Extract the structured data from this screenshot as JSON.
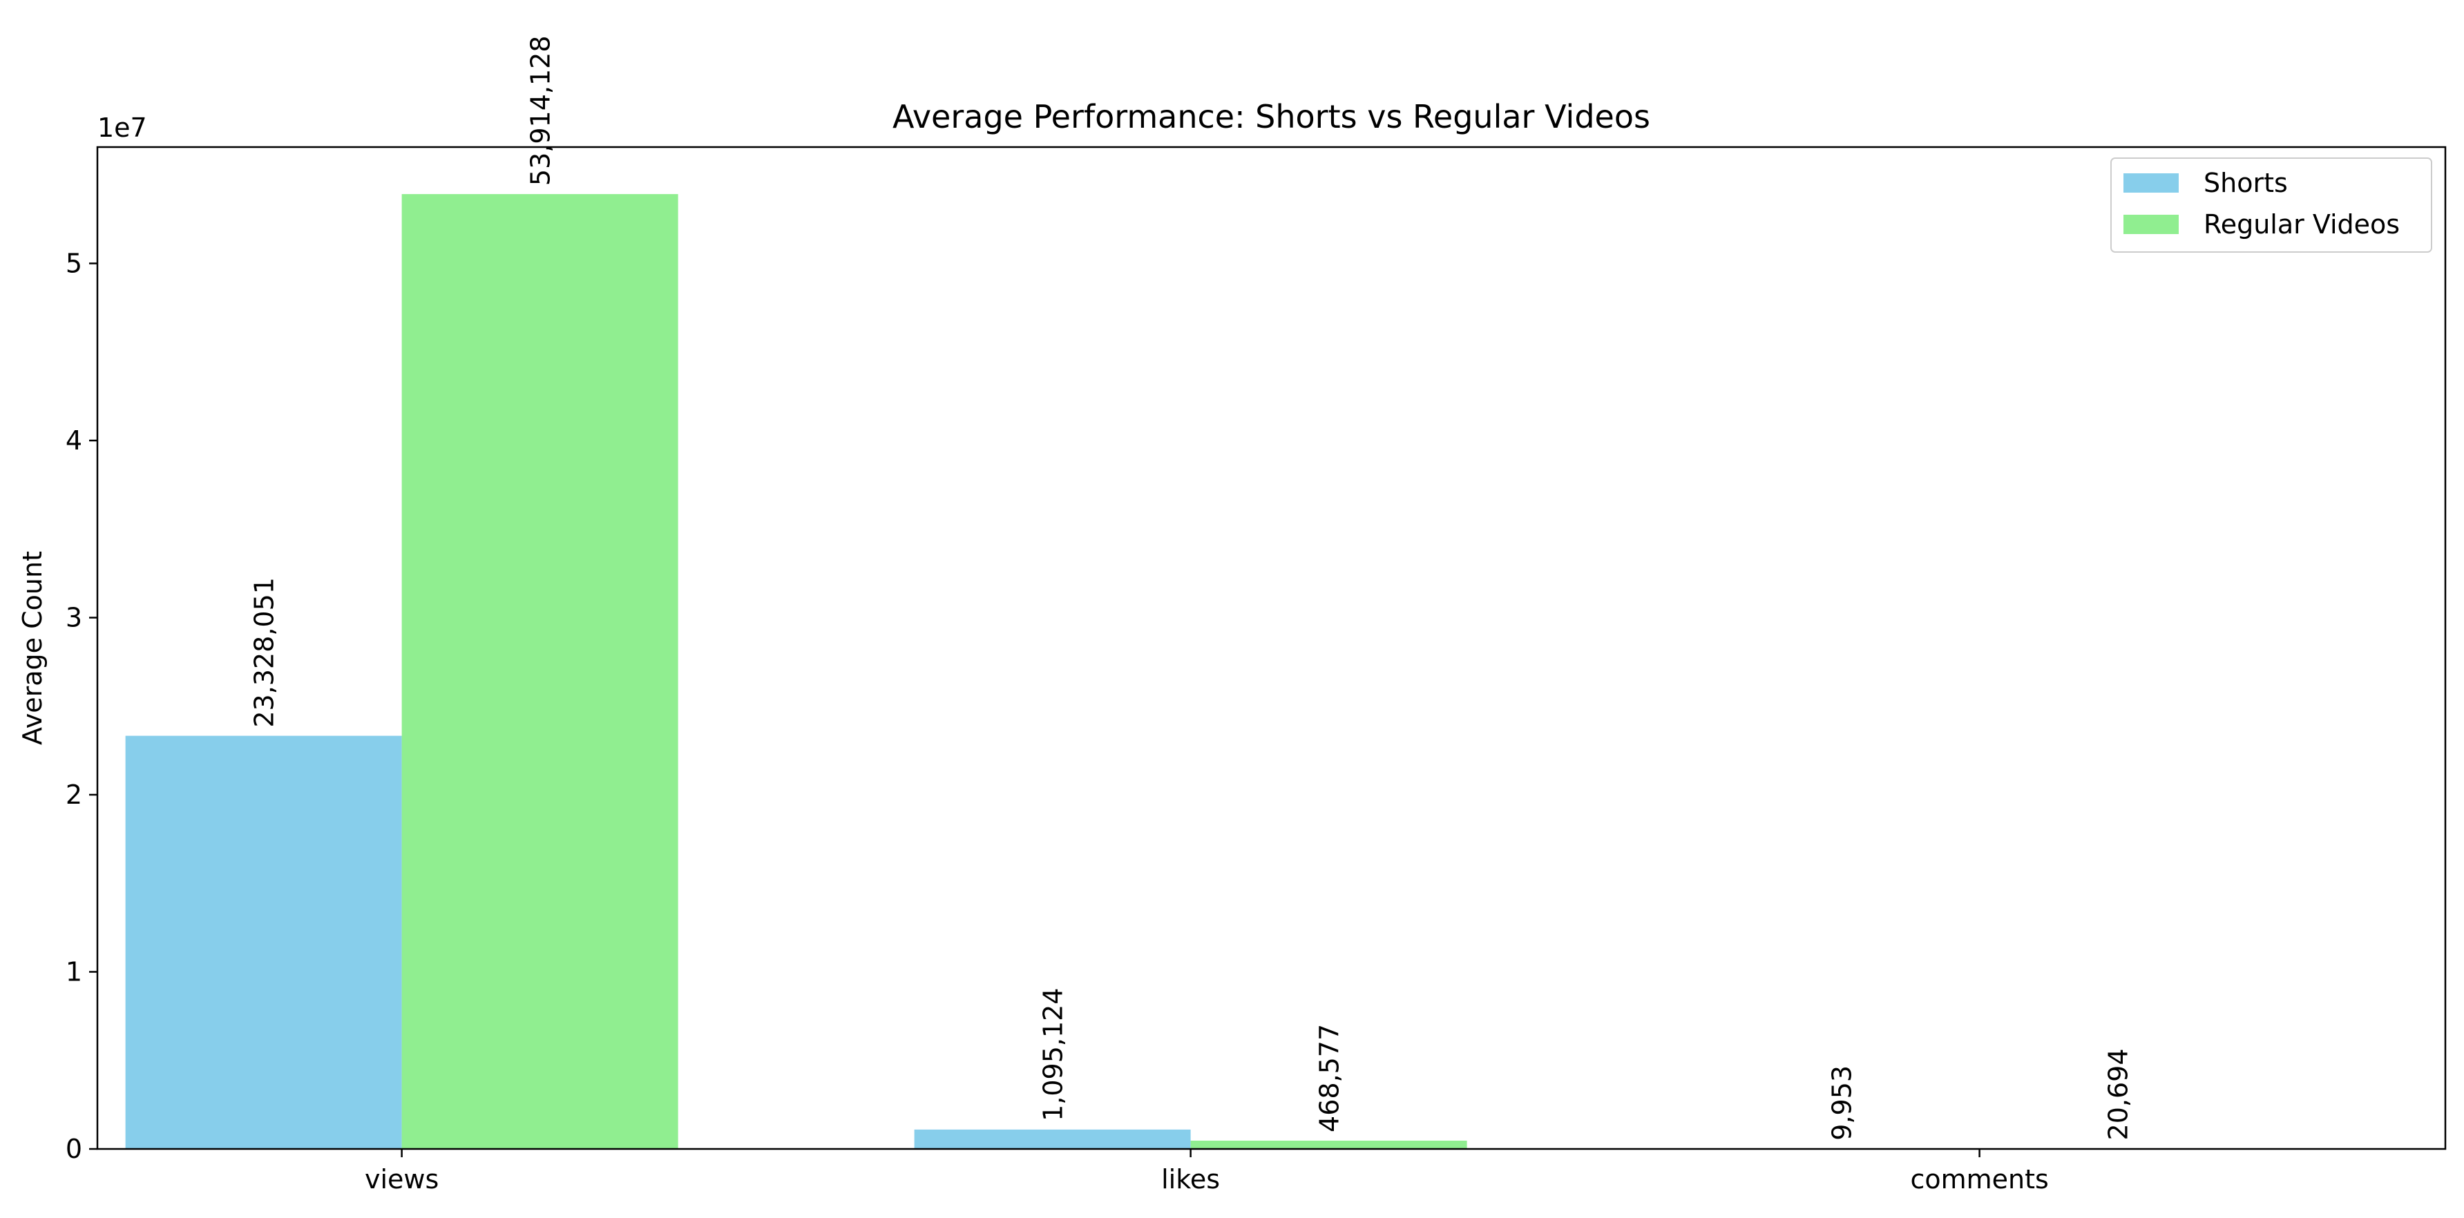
{
  "chart_data": {
    "type": "bar",
    "title": "Average Performance: Shorts vs Regular Videos",
    "xlabel": "",
    "ylabel": "Average Count",
    "y_offset_label": "1e7",
    "y_scale": 10000000,
    "ylim": [
      0,
      56569000
    ],
    "yticks": [
      0,
      1,
      2,
      3,
      4,
      5
    ],
    "categories": [
      "views",
      "likes",
      "comments"
    ],
    "series": [
      {
        "name": "Shorts",
        "color": "#87CEEB",
        "values": [
          23328051,
          1095124,
          9953
        ],
        "labels": [
          "23,328,051",
          "1,095,124",
          "9,953"
        ]
      },
      {
        "name": "Regular Videos",
        "color": "#90EE90",
        "values": [
          53914128,
          468577,
          20694
        ],
        "labels": [
          "53,914,128",
          "468,577",
          "20,694"
        ]
      }
    ],
    "legend_position": "top-right",
    "grid": false
  }
}
